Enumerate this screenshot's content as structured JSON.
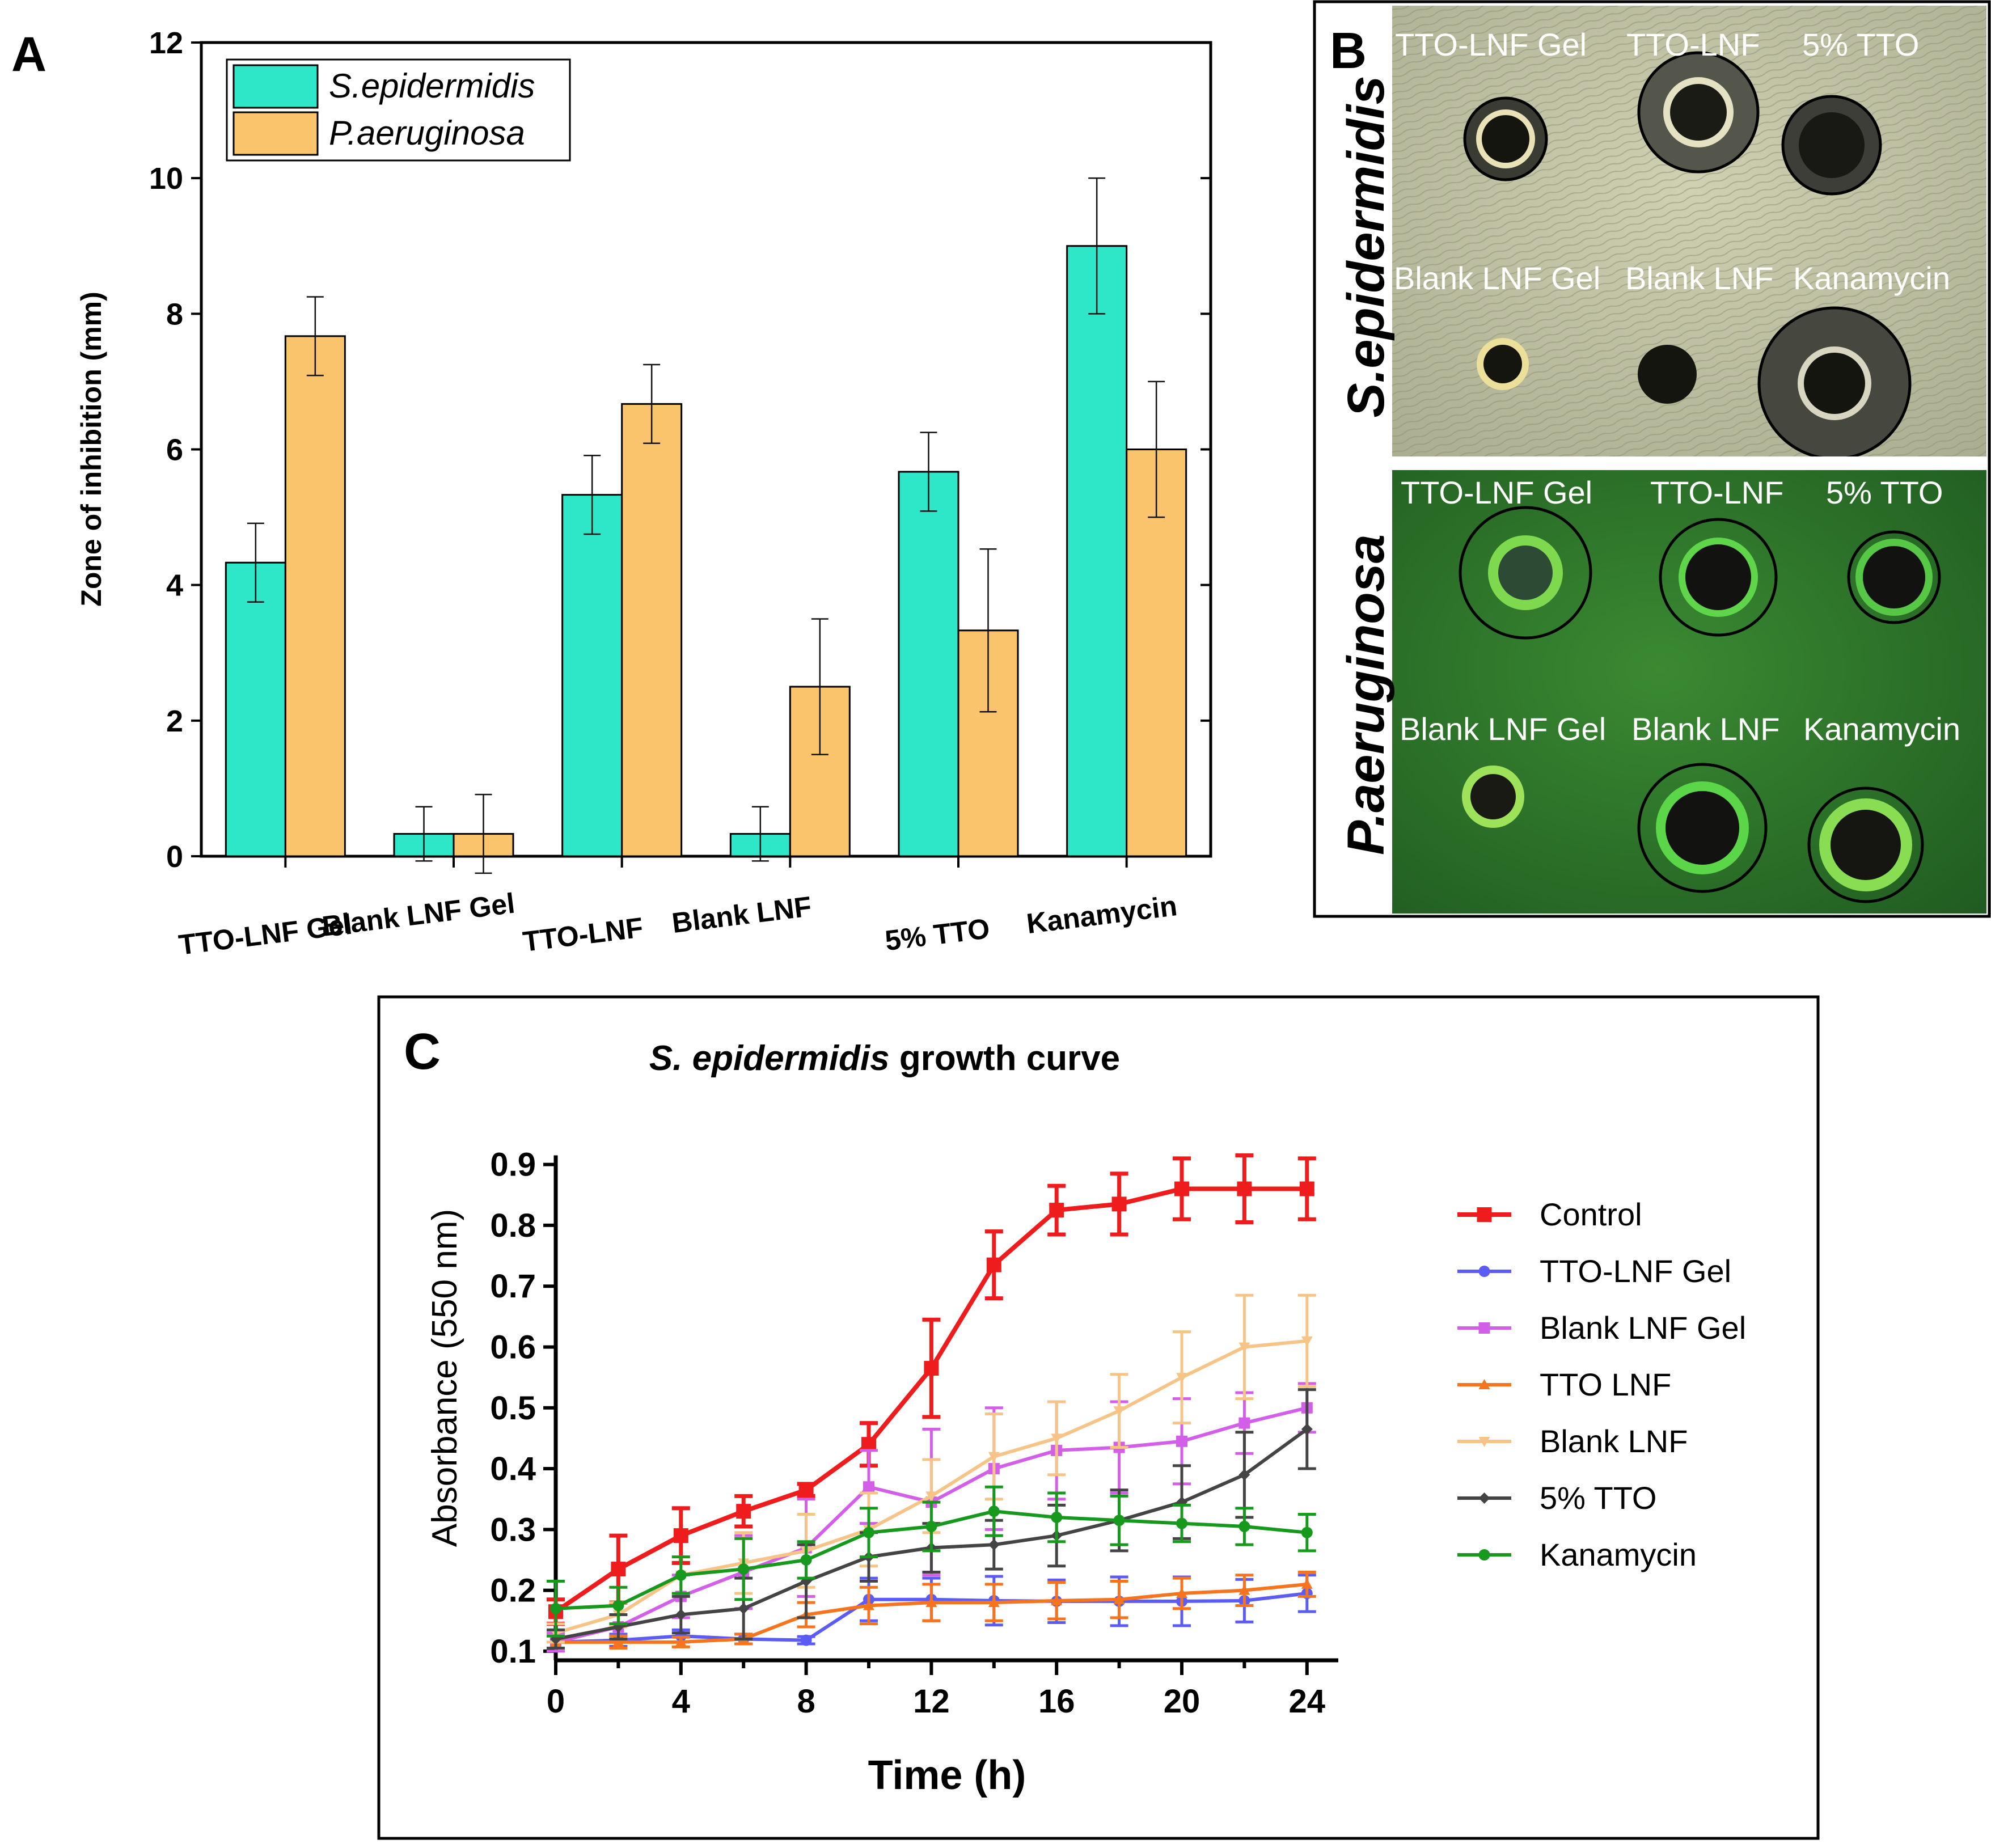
{
  "panel_labels": {
    "a": "A",
    "b": "B",
    "c": "C"
  },
  "chart_data": [
    {
      "type": "bar",
      "panel": "A",
      "title": "",
      "xlabel": "",
      "ylabel": "Zone of inhibition (mm)",
      "ylim": [
        0,
        12
      ],
      "yticks": [
        0,
        2,
        4,
        6,
        8,
        10,
        12
      ],
      "categories": [
        "TTO-LNF Gel",
        "Blank LNF Gel",
        "TTO-LNF",
        "Blank LNF",
        "5% TTO",
        "Kanamycin"
      ],
      "series": [
        {
          "name": "S.epidermidis",
          "color": "#2ee6c8",
          "values": [
            4.33,
            0.33,
            5.33,
            0.33,
            5.67,
            9.0
          ],
          "errors": [
            0.58,
            0.4,
            0.58,
            0.4,
            0.58,
            1.0
          ]
        },
        {
          "name": "P.aeruginosa",
          "color": "#f9c46b",
          "values": [
            7.67,
            0.33,
            6.67,
            2.5,
            3.33,
            6.0
          ],
          "errors": [
            0.58,
            0.58,
            0.58,
            1.0,
            1.2,
            1.0
          ]
        }
      ],
      "legend_position": "top-left"
    },
    {
      "type": "line",
      "panel": "C",
      "title_italic": "S. epidermidis",
      "title_rest": " growth curve",
      "xlabel": "Time (h)",
      "ylabel": "Absorbance (550 nm)",
      "xlim": [
        0,
        25
      ],
      "ylim": [
        0.085,
        0.95
      ],
      "xticks": [
        0,
        4,
        8,
        12,
        16,
        20,
        24
      ],
      "yticks": [
        0.1,
        0.2,
        0.3,
        0.4,
        0.5,
        0.6,
        0.7,
        0.8,
        0.9
      ],
      "x": [
        0,
        2,
        4,
        6,
        8,
        10,
        12,
        14,
        16,
        18,
        20,
        22,
        24
      ],
      "series": [
        {
          "name": "Control",
          "color": "#ee1c1c",
          "marker": "square",
          "bold": true,
          "values": [
            0.165,
            0.235,
            0.29,
            0.33,
            0.365,
            0.44,
            0.565,
            0.735,
            0.825,
            0.835,
            0.86,
            0.86,
            0.86
          ],
          "errors": [
            0.02,
            0.055,
            0.045,
            0.025,
            0.01,
            0.035,
            0.08,
            0.055,
            0.04,
            0.05,
            0.05,
            0.055,
            0.05
          ]
        },
        {
          "name": "TTO-LNF Gel",
          "color": "#5b5bf5",
          "marker": "circle",
          "bold": false,
          "values": [
            0.115,
            0.118,
            0.125,
            0.12,
            0.118,
            0.185,
            0.185,
            0.183,
            0.182,
            0.182,
            0.182,
            0.183,
            0.195
          ],
          "errors": [
            0.01,
            0.01,
            0.01,
            0.008,
            0.006,
            0.035,
            0.035,
            0.04,
            0.035,
            0.04,
            0.04,
            0.035,
            0.03
          ]
        },
        {
          "name": "Blank LNF Gel",
          "color": "#d35ee8",
          "marker": "square",
          "bold": false,
          "values": [
            0.115,
            0.14,
            0.19,
            0.23,
            0.27,
            0.37,
            0.345,
            0.4,
            0.43,
            0.435,
            0.445,
            0.475,
            0.5
          ],
          "errors": [
            0.015,
            0.02,
            0.035,
            0.06,
            0.08,
            0.06,
            0.12,
            0.1,
            0.08,
            0.075,
            0.07,
            0.05,
            0.04
          ]
        },
        {
          "name": "TTO LNF",
          "color": "#f5741d",
          "marker": "triangle",
          "bold": false,
          "values": [
            0.115,
            0.115,
            0.115,
            0.12,
            0.16,
            0.175,
            0.18,
            0.18,
            0.183,
            0.185,
            0.195,
            0.2,
            0.21
          ],
          "errors": [
            0.01,
            0.01,
            0.008,
            0.008,
            0.02,
            0.03,
            0.03,
            0.03,
            0.03,
            0.03,
            0.025,
            0.025,
            0.02
          ]
        },
        {
          "name": "Blank LNF",
          "color": "#f7c488",
          "marker": "tri-down",
          "bold": false,
          "values": [
            0.13,
            0.16,
            0.225,
            0.245,
            0.265,
            0.3,
            0.355,
            0.42,
            0.45,
            0.495,
            0.55,
            0.6,
            0.61
          ],
          "errors": [
            0.015,
            0.02,
            0.03,
            0.05,
            0.06,
            0.06,
            0.06,
            0.07,
            0.06,
            0.06,
            0.075,
            0.085,
            0.075
          ]
        },
        {
          "name": "5% TTO",
          "color": "#444444",
          "marker": "diamond",
          "bold": false,
          "values": [
            0.12,
            0.14,
            0.16,
            0.17,
            0.215,
            0.255,
            0.27,
            0.275,
            0.29,
            0.315,
            0.345,
            0.39,
            0.465
          ],
          "errors": [
            0.015,
            0.02,
            0.03,
            0.05,
            0.06,
            0.04,
            0.04,
            0.04,
            0.05,
            0.05,
            0.06,
            0.07,
            0.065
          ]
        },
        {
          "name": "Kanamycin",
          "color": "#17991e",
          "marker": "circle",
          "bold": false,
          "values": [
            0.17,
            0.175,
            0.225,
            0.235,
            0.25,
            0.295,
            0.305,
            0.33,
            0.32,
            0.315,
            0.31,
            0.305,
            0.295
          ],
          "errors": [
            0.045,
            0.03,
            0.03,
            0.05,
            0.03,
            0.04,
            0.04,
            0.04,
            0.04,
            0.04,
            0.03,
            0.03,
            0.03
          ]
        }
      ],
      "legend_position": "right"
    }
  ],
  "plate_panel": {
    "top": {
      "organism": "S.epidermidis",
      "wells": [
        "TTO-LNF Gel",
        "TTO-LNF",
        "5% TTO",
        "Blank LNF Gel",
        "Blank LNF",
        "Kanamycin"
      ]
    },
    "bottom": {
      "organism": "P.aeruginosa",
      "wells": [
        "TTO-LNF Gel",
        "TTO-LNF",
        "5% TTO",
        "Blank LNF Gel",
        "Blank LNF",
        "Kanamycin"
      ]
    },
    "colors": {
      "agar_top": "#c6c7a8",
      "agar_bottom": "#2f7a2c"
    }
  }
}
